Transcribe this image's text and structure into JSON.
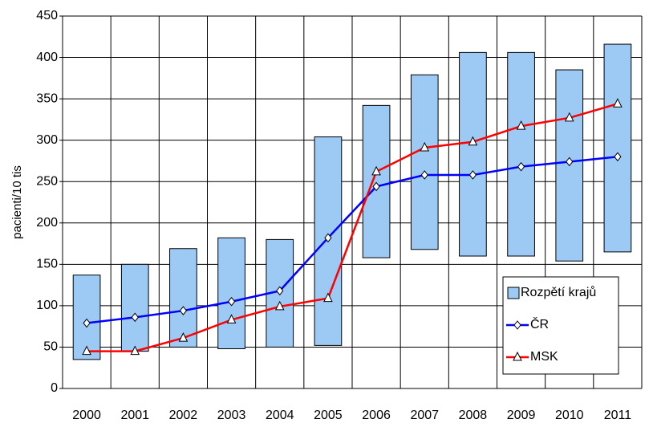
{
  "chart_data": {
    "type": "range-bar-line",
    "y_label": "pacienti/10 tis",
    "categories": [
      "2000",
      "2001",
      "2002",
      "2003",
      "2004",
      "2005",
      "2006",
      "2007",
      "2008",
      "2009",
      "2010",
      "2011"
    ],
    "series": [
      {
        "name": "Rozpětí krajů",
        "type": "range",
        "color": "#9dcaf5",
        "low": [
          35,
          45,
          50,
          48,
          50,
          52,
          158,
          168,
          160,
          160,
          154,
          165
        ],
        "high": [
          137,
          150,
          169,
          182,
          180,
          304,
          342,
          379,
          406,
          406,
          385,
          416
        ]
      },
      {
        "name": "ČR",
        "type": "line",
        "color": "#0000ff",
        "marker": "diamond",
        "values": [
          79,
          86,
          94,
          105,
          118,
          182,
          244,
          258,
          258,
          268,
          274,
          280
        ]
      },
      {
        "name": "MSK",
        "type": "line",
        "color": "#ff0000",
        "marker": "triangle",
        "values": [
          45,
          45,
          61,
          83,
          99,
          109,
          262,
          291,
          298,
          317,
          327,
          344
        ]
      }
    ],
    "ylim": [
      0,
      450
    ],
    "yticks": [
      0,
      50,
      100,
      150,
      200,
      250,
      300,
      350,
      400,
      450
    ],
    "grid": true,
    "legend": "lower right"
  }
}
